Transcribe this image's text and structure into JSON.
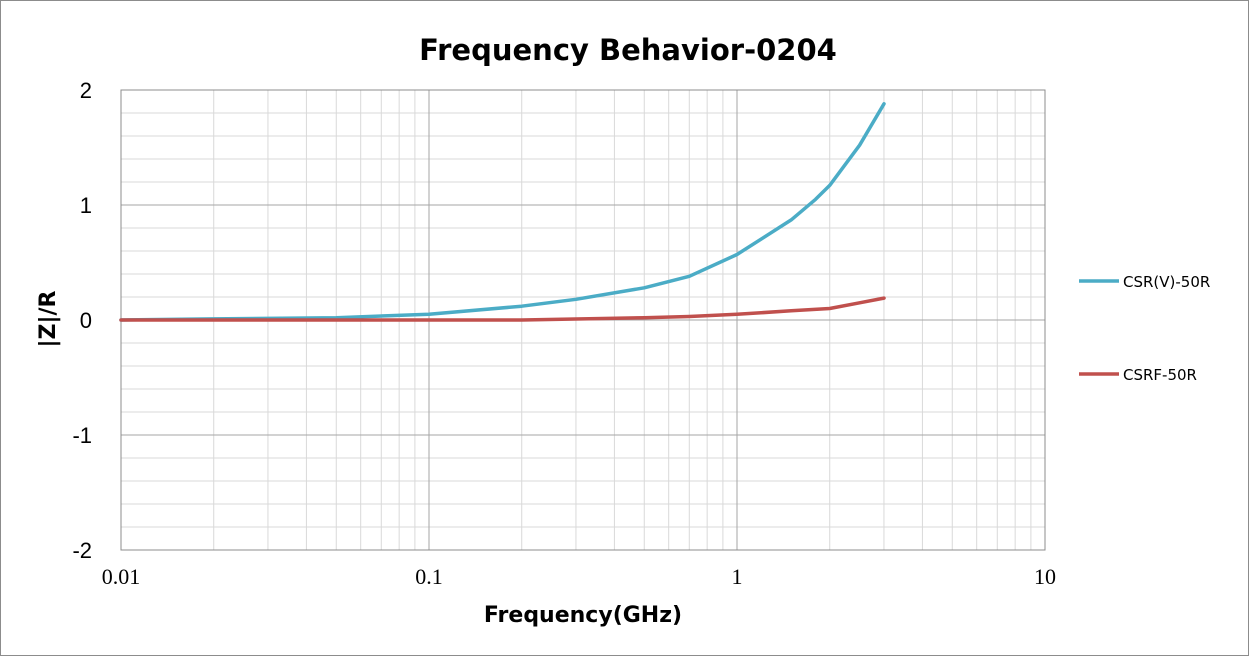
{
  "chart_data": {
    "type": "line",
    "title": "Frequency Behavior-0204",
    "xlabel": "Frequency(GHz)",
    "ylabel": "|Z|/R",
    "x_scale": "log",
    "xlim": [
      0.01,
      10
    ],
    "ylim": [
      -2,
      2
    ],
    "x_ticks": [
      {
        "value": 0.01,
        "label": "0.01"
      },
      {
        "value": 0.1,
        "label": "0.1"
      },
      {
        "value": 1,
        "label": "1"
      },
      {
        "value": 10,
        "label": "10"
      }
    ],
    "y_ticks": [
      {
        "value": 2,
        "label": "2"
      },
      {
        "value": 1,
        "label": "1"
      },
      {
        "value": 0,
        "label": "0"
      },
      {
        "value": -1,
        "label": "-1"
      },
      {
        "value": -2,
        "label": "-2"
      }
    ],
    "grid": true,
    "legend_position": "right",
    "series": [
      {
        "name": "CSR(V)-50R",
        "color": "#4bacc6",
        "x": [
          0.01,
          0.02,
          0.05,
          0.1,
          0.2,
          0.3,
          0.5,
          0.7,
          1,
          1.5,
          1.8,
          2,
          2.5,
          3
        ],
        "y": [
          0.0,
          0.01,
          0.02,
          0.05,
          0.12,
          0.18,
          0.28,
          0.38,
          0.57,
          0.87,
          1.05,
          1.17,
          1.52,
          1.88
        ]
      },
      {
        "name": "CSRF-50R",
        "color": "#c0504d",
        "x": [
          0.01,
          0.1,
          0.2,
          0.5,
          0.7,
          1,
          1.5,
          2,
          2.5,
          3
        ],
        "y": [
          0.0,
          0.0,
          0.0,
          0.02,
          0.03,
          0.05,
          0.08,
          0.1,
          0.15,
          0.19
        ]
      }
    ]
  }
}
